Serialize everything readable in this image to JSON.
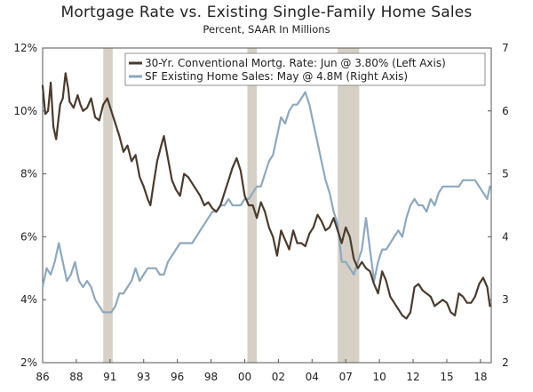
{
  "header": {
    "title": "Mortgage Rate vs. Existing Single-Family Home Sales",
    "subtitle": "Percent, SAAR In Millions"
  },
  "chart_data": {
    "type": "line",
    "title": "Mortgage Rate vs. Existing Single-Family Home Sales",
    "subtitle": "Percent, SAAR In Millions",
    "x_range": [
      1986,
      2019.3
    ],
    "x_ticks": [
      {
        "label": "86",
        "value": 1986
      },
      {
        "label": "88",
        "value": 1988.5
      },
      {
        "label": "91",
        "value": 1991
      },
      {
        "label": "93",
        "value": 1993.5
      },
      {
        "label": "96",
        "value": 1996
      },
      {
        "label": "98",
        "value": 1998.5
      },
      {
        "label": "00",
        "value": 2001
      },
      {
        "label": "02",
        "value": 2003.5
      },
      {
        "label": "04",
        "value": 2006
      },
      {
        "label": "07",
        "value": 2008.5
      },
      {
        "label": "10",
        "value": 2011
      },
      {
        "label": "12",
        "value": 2013.5
      },
      {
        "label": "15",
        "value": 2016
      },
      {
        "label": "18",
        "value": 2018.5
      }
    ],
    "y_left": {
      "min": 2,
      "max": 12,
      "ticks": [
        "2%",
        "4%",
        "6%",
        "8%",
        "10%",
        "12%"
      ],
      "tick_values": [
        2,
        4,
        6,
        8,
        10,
        12
      ]
    },
    "y_right": {
      "min": 2,
      "max": 7,
      "ticks": [
        "2",
        "3",
        "4",
        "5",
        "6",
        "7"
      ],
      "tick_values": [
        2,
        3,
        4,
        5,
        6,
        7
      ]
    },
    "recessions": [
      [
        1990.5,
        1991.2
      ],
      [
        2001.2,
        2001.9
      ],
      [
        2007.9,
        2009.5
      ]
    ],
    "legend": {
      "position": "top-right",
      "entries": [
        {
          "label": "30-Yr. Conventional Mortg. Rate: Jun @ 3.80% (Left Axis)",
          "color": "#4a3b2e"
        },
        {
          "label": "SF Existing Home Sales: May @ 4.8M (Right Axis)",
          "color": "#8ea8bd"
        }
      ]
    },
    "series": [
      {
        "name": "30-Yr. Conventional Mortg. Rate: Jun @ 3.80% (Left Axis)",
        "axis": "left",
        "color": "#4a3b2e",
        "x": [
          1986.0,
          1986.2,
          1986.4,
          1986.6,
          1986.8,
          1987.0,
          1987.3,
          1987.5,
          1987.7,
          1987.9,
          1988.0,
          1988.3,
          1988.6,
          1988.8,
          1989.0,
          1989.3,
          1989.6,
          1989.9,
          1990.2,
          1990.5,
          1990.8,
          1991.1,
          1991.4,
          1991.7,
          1992.0,
          1992.3,
          1992.6,
          1992.9,
          1993.2,
          1993.5,
          1993.8,
          1994.0,
          1994.2,
          1994.5,
          1994.8,
          1995.0,
          1995.3,
          1995.6,
          1995.9,
          1996.2,
          1996.5,
          1996.8,
          1997.1,
          1997.4,
          1997.7,
          1998.0,
          1998.3,
          1998.6,
          1998.9,
          1999.2,
          1999.5,
          1999.8,
          2000.1,
          2000.4,
          2000.7,
          2001.0,
          2001.3,
          2001.6,
          2001.9,
          2002.2,
          2002.5,
          2002.8,
          2003.1,
          2003.4,
          2003.7,
          2004.0,
          2004.3,
          2004.6,
          2004.9,
          2005.2,
          2005.5,
          2005.8,
          2006.1,
          2006.4,
          2006.7,
          2007.0,
          2007.3,
          2007.6,
          2007.9,
          2008.2,
          2008.5,
          2008.8,
          2009.1,
          2009.4,
          2009.7,
          2010.0,
          2010.3,
          2010.6,
          2010.9,
          2011.2,
          2011.5,
          2011.8,
          2012.1,
          2012.4,
          2012.7,
          2013.0,
          2013.3,
          2013.6,
          2013.9,
          2014.2,
          2014.5,
          2014.8,
          2015.1,
          2015.4,
          2015.7,
          2016.0,
          2016.3,
          2016.6,
          2016.9,
          2017.2,
          2017.5,
          2017.8,
          2018.1,
          2018.4,
          2018.7,
          2019.0,
          2019.2
        ],
        "values": [
          10.8,
          9.9,
          10.0,
          10.9,
          9.5,
          9.1,
          10.2,
          10.4,
          11.2,
          10.7,
          10.3,
          10.1,
          10.5,
          10.2,
          10.0,
          10.1,
          10.4,
          9.8,
          9.7,
          10.2,
          10.4,
          10.0,
          9.6,
          9.2,
          8.7,
          8.9,
          8.4,
          8.6,
          7.9,
          7.6,
          7.2,
          7.0,
          7.6,
          8.4,
          8.9,
          9.2,
          8.5,
          7.8,
          7.5,
          7.3,
          8.0,
          7.9,
          7.7,
          7.5,
          7.3,
          7.0,
          7.1,
          6.9,
          6.8,
          7.0,
          7.4,
          7.8,
          8.2,
          8.5,
          8.1,
          7.3,
          7.0,
          7.0,
          6.6,
          7.1,
          6.8,
          6.3,
          6.0,
          5.4,
          6.2,
          5.9,
          5.6,
          6.2,
          5.8,
          5.8,
          5.7,
          6.1,
          6.3,
          6.7,
          6.5,
          6.2,
          6.3,
          6.6,
          6.2,
          5.8,
          6.3,
          6.0,
          5.3,
          5.0,
          5.2,
          5.0,
          4.9,
          4.5,
          4.2,
          4.9,
          4.6,
          4.1,
          3.9,
          3.7,
          3.5,
          3.4,
          3.6,
          4.4,
          4.5,
          4.3,
          4.2,
          4.1,
          3.8,
          3.9,
          4.0,
          3.9,
          3.6,
          3.5,
          4.2,
          4.1,
          3.9,
          3.9,
          4.1,
          4.5,
          4.7,
          4.4,
          3.8
        ]
      },
      {
        "name": "SF Existing Home Sales: May @ 4.8M (Right Axis)",
        "axis": "right",
        "color": "#8ea8bd",
        "x": [
          1986.0,
          1986.3,
          1986.6,
          1986.9,
          1987.2,
          1987.5,
          1987.8,
          1988.1,
          1988.4,
          1988.7,
          1989.0,
          1989.3,
          1989.6,
          1989.9,
          1990.2,
          1990.5,
          1990.8,
          1991.1,
          1991.4,
          1991.7,
          1992.0,
          1992.3,
          1992.6,
          1992.9,
          1993.2,
          1993.5,
          1993.8,
          1994.1,
          1994.4,
          1994.7,
          1995.0,
          1995.3,
          1995.6,
          1995.9,
          1996.2,
          1996.5,
          1996.8,
          1997.1,
          1997.4,
          1997.7,
          1998.0,
          1998.3,
          1998.6,
          1998.9,
          1999.2,
          1999.5,
          1999.8,
          2000.1,
          2000.4,
          2000.7,
          2001.0,
          2001.3,
          2001.6,
          2001.9,
          2002.2,
          2002.5,
          2002.8,
          2003.1,
          2003.4,
          2003.7,
          2004.0,
          2004.3,
          2004.6,
          2004.9,
          2005.2,
          2005.5,
          2005.8,
          2006.1,
          2006.4,
          2006.7,
          2007.0,
          2007.3,
          2007.6,
          2007.9,
          2008.2,
          2008.5,
          2008.8,
          2009.1,
          2009.4,
          2009.7,
          2010.0,
          2010.3,
          2010.6,
          2010.9,
          2011.2,
          2011.5,
          2011.8,
          2012.1,
          2012.4,
          2012.7,
          2013.0,
          2013.3,
          2013.6,
          2013.9,
          2014.2,
          2014.5,
          2014.8,
          2015.1,
          2015.4,
          2015.7,
          2016.0,
          2016.3,
          2016.6,
          2016.9,
          2017.2,
          2017.5,
          2017.8,
          2018.1,
          2018.4,
          2018.7,
          2019.0,
          2019.2
        ],
        "values": [
          3.2,
          3.5,
          3.4,
          3.6,
          3.9,
          3.6,
          3.3,
          3.4,
          3.6,
          3.3,
          3.2,
          3.3,
          3.2,
          3.0,
          2.9,
          2.8,
          2.8,
          2.8,
          2.9,
          3.1,
          3.1,
          3.2,
          3.3,
          3.5,
          3.3,
          3.4,
          3.5,
          3.5,
          3.5,
          3.4,
          3.4,
          3.6,
          3.7,
          3.8,
          3.9,
          3.9,
          3.9,
          3.9,
          4.0,
          4.1,
          4.2,
          4.3,
          4.4,
          4.4,
          4.5,
          4.5,
          4.6,
          4.5,
          4.5,
          4.5,
          4.6,
          4.6,
          4.7,
          4.8,
          4.8,
          5.0,
          5.2,
          5.3,
          5.6,
          5.9,
          5.8,
          6.0,
          6.1,
          6.1,
          6.2,
          6.3,
          6.1,
          5.8,
          5.5,
          5.2,
          4.9,
          4.7,
          4.4,
          4.2,
          3.6,
          3.6,
          3.5,
          3.4,
          3.6,
          3.8,
          4.3,
          3.8,
          3.3,
          3.6,
          3.8,
          3.8,
          3.9,
          4.0,
          4.1,
          4.0,
          4.3,
          4.5,
          4.6,
          4.5,
          4.5,
          4.4,
          4.6,
          4.5,
          4.7,
          4.8,
          4.8,
          4.8,
          4.8,
          4.8,
          4.9,
          4.9,
          4.9,
          4.9,
          4.8,
          4.7,
          4.6,
          4.8
        ]
      }
    ]
  }
}
